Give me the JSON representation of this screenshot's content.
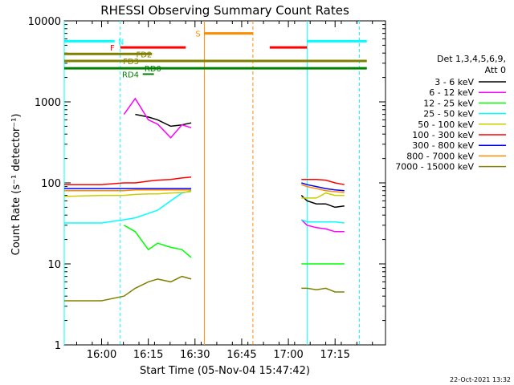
{
  "chart_data": {
    "type": "line",
    "title": "RHESSI Observing Summary Count Rates",
    "xlabel": "Start Time (05-Nov-04 15:47:42)",
    "ylabel": "Count Rate (s⁻¹ detector⁻¹)",
    "yscale": "log",
    "ylim": [
      1,
      10000
    ],
    "xlim_minutes": [
      15.8,
      17.5
    ],
    "x_ticks": [
      "16:00",
      "16:15",
      "16:30",
      "16:45",
      "17:00",
      "17:15"
    ],
    "y_ticks": [
      "1",
      "10",
      "100",
      "1000",
      "10000"
    ],
    "legend_title": [
      "Det 1,3,4,5,6,9,",
      "Att 0"
    ],
    "legend_position": "right",
    "footer": "22-Oct-2021 13:32",
    "flags": [
      {
        "label": "N",
        "color": "#00ffff"
      },
      {
        "label": "F",
        "color": "#ff0000"
      },
      {
        "label": "FD2",
        "color": "#808000"
      },
      {
        "label": "S",
        "color": "#ff8c00"
      },
      {
        "label": "FD3",
        "color": "#808000"
      },
      {
        "label": "RD0",
        "color": "#008000"
      },
      {
        "label": "RD4",
        "color": "#008000"
      }
    ],
    "series": [
      {
        "name": "3 - 6 keV",
        "color": "#000000",
        "values": [
          [
            16.12,
            null
          ],
          [
            16.18,
            700
          ],
          [
            16.25,
            650
          ],
          [
            16.3,
            600
          ],
          [
            16.37,
            500
          ],
          [
            16.43,
            520
          ],
          [
            16.48,
            550
          ],
          [
            17.07,
            70
          ],
          [
            17.1,
            60
          ],
          [
            17.15,
            55
          ],
          [
            17.2,
            55
          ],
          [
            17.25,
            50
          ],
          [
            17.3,
            52
          ]
        ]
      },
      {
        "name": "6 - 12 keV",
        "color": "#ff00ff",
        "values": [
          [
            16.12,
            700
          ],
          [
            16.18,
            1100
          ],
          [
            16.25,
            600
          ],
          [
            16.3,
            530
          ],
          [
            16.37,
            360
          ],
          [
            16.43,
            520
          ],
          [
            16.48,
            480
          ],
          [
            17.07,
            35
          ],
          [
            17.1,
            30
          ],
          [
            17.15,
            28
          ],
          [
            17.2,
            27
          ],
          [
            17.25,
            25
          ],
          [
            17.3,
            25
          ]
        ]
      },
      {
        "name": "12 - 25 keV",
        "color": "#00ff00",
        "values": [
          [
            16.12,
            30
          ],
          [
            16.18,
            25
          ],
          [
            16.25,
            15
          ],
          [
            16.3,
            18
          ],
          [
            16.37,
            16
          ],
          [
            16.43,
            15
          ],
          [
            16.48,
            12
          ],
          [
            17.07,
            10
          ],
          [
            17.1,
            10
          ],
          [
            17.15,
            10
          ],
          [
            17.2,
            10
          ],
          [
            17.25,
            10
          ],
          [
            17.3,
            10
          ]
        ]
      },
      {
        "name": "25 - 50 keV",
        "color": "#00ffff",
        "values": [
          [
            15.8,
            32
          ],
          [
            16.0,
            32
          ],
          [
            16.12,
            35
          ],
          [
            16.18,
            37
          ],
          [
            16.25,
            42
          ],
          [
            16.3,
            46
          ],
          [
            16.37,
            60
          ],
          [
            16.43,
            75
          ],
          [
            16.48,
            80
          ],
          [
            17.07,
            35
          ],
          [
            17.1,
            33
          ],
          [
            17.15,
            33
          ],
          [
            17.2,
            33
          ],
          [
            17.25,
            33
          ],
          [
            17.3,
            32
          ]
        ]
      },
      {
        "name": "50 - 100 keV",
        "color": "#cccc00",
        "values": [
          [
            15.8,
            68
          ],
          [
            16.0,
            70
          ],
          [
            16.12,
            70
          ],
          [
            16.18,
            72
          ],
          [
            16.25,
            73
          ],
          [
            16.3,
            73
          ],
          [
            16.37,
            75
          ],
          [
            16.43,
            76
          ],
          [
            16.48,
            78
          ],
          [
            17.07,
            65
          ],
          [
            17.1,
            65
          ],
          [
            17.15,
            65
          ],
          [
            17.2,
            75
          ],
          [
            17.25,
            70
          ],
          [
            17.3,
            70
          ]
        ]
      },
      {
        "name": "100 - 300 keV",
        "color": "#ff0000",
        "values": [
          [
            15.8,
            95
          ],
          [
            16.0,
            95
          ],
          [
            16.12,
            100
          ],
          [
            16.18,
            100
          ],
          [
            16.25,
            105
          ],
          [
            16.3,
            108
          ],
          [
            16.37,
            110
          ],
          [
            16.43,
            115
          ],
          [
            16.48,
            118
          ],
          [
            17.07,
            110
          ],
          [
            17.1,
            110
          ],
          [
            17.15,
            110
          ],
          [
            17.2,
            108
          ],
          [
            17.25,
            100
          ],
          [
            17.3,
            95
          ]
        ]
      },
      {
        "name": "300 - 800 keV",
        "color": "#0000ff",
        "values": [
          [
            15.8,
            85
          ],
          [
            16.0,
            85
          ],
          [
            16.12,
            85
          ],
          [
            16.18,
            85
          ],
          [
            16.25,
            85
          ],
          [
            16.3,
            85
          ],
          [
            16.37,
            85
          ],
          [
            16.43,
            85
          ],
          [
            16.48,
            85
          ],
          [
            17.07,
            100
          ],
          [
            17.1,
            95
          ],
          [
            17.15,
            90
          ],
          [
            17.2,
            85
          ],
          [
            17.25,
            82
          ],
          [
            17.3,
            80
          ]
        ]
      },
      {
        "name": "800 - 7000 keV",
        "color": "#ff8c00",
        "values": [
          [
            15.8,
            80
          ],
          [
            16.0,
            80
          ],
          [
            16.12,
            80
          ],
          [
            16.18,
            82
          ],
          [
            16.25,
            82
          ],
          [
            16.3,
            82
          ],
          [
            16.37,
            82
          ],
          [
            16.43,
            82
          ],
          [
            16.48,
            82
          ],
          [
            17.07,
            95
          ],
          [
            17.1,
            90
          ],
          [
            17.15,
            85
          ],
          [
            17.2,
            80
          ],
          [
            17.25,
            78
          ],
          [
            17.3,
            76
          ]
        ]
      },
      {
        "name": "7000 - 15000 keV",
        "color": "#808000",
        "values": [
          [
            15.8,
            3.5
          ],
          [
            16.0,
            3.5
          ],
          [
            16.12,
            4
          ],
          [
            16.18,
            5
          ],
          [
            16.25,
            6
          ],
          [
            16.3,
            6.5
          ],
          [
            16.37,
            6
          ],
          [
            16.43,
            7
          ],
          [
            16.48,
            6.5
          ],
          [
            17.07,
            5
          ],
          [
            17.1,
            5
          ],
          [
            17.15,
            4.8
          ],
          [
            17.2,
            5
          ],
          [
            17.25,
            4.5
          ],
          [
            17.3,
            4.5
          ]
        ]
      }
    ]
  }
}
